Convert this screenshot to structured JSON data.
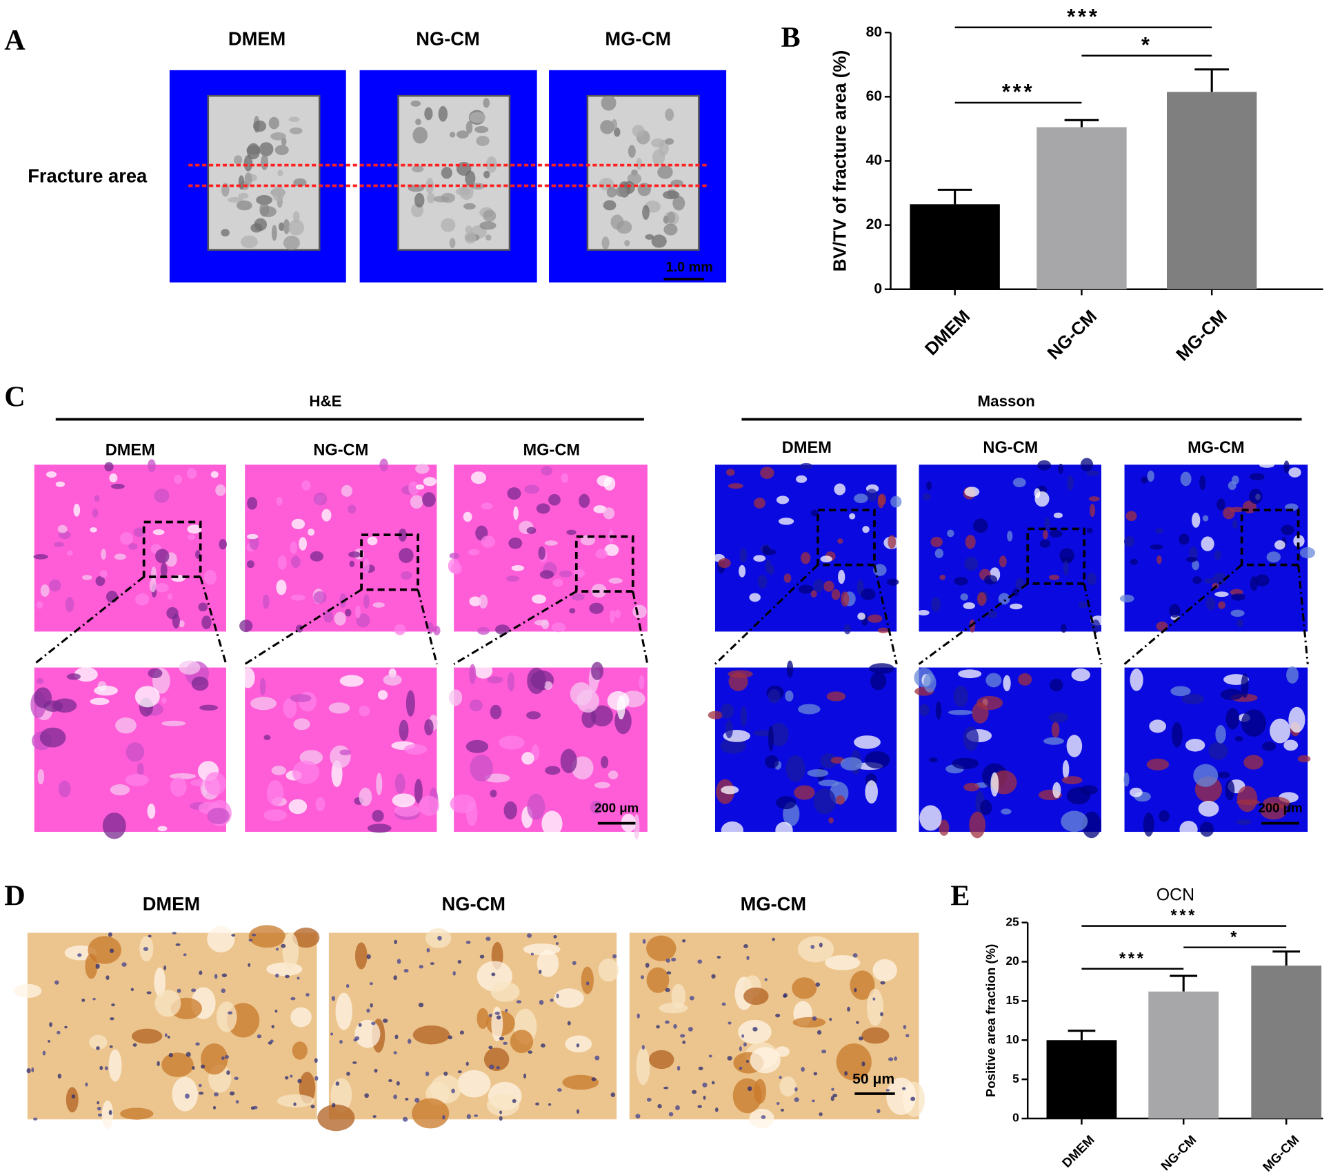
{
  "figure": {
    "panel_labels": [
      "A",
      "B",
      "C",
      "D",
      "E"
    ],
    "A": {
      "groups": [
        "DMEM",
        "NG-CM",
        "MG-CM"
      ],
      "region_label": "Fracture area",
      "scale_bar": "1.0 mm"
    },
    "C": {
      "stains": [
        "H&E",
        "Masson"
      ],
      "he_groups": [
        "DMEM",
        "NG-CM",
        "MG-CM"
      ],
      "masson_groups": [
        "DMEM",
        "NG-CM",
        "MG-CM"
      ],
      "scale_bars": [
        "200 μm",
        "200 μm"
      ]
    },
    "D": {
      "groups": [
        "DMEM",
        "NG-CM",
        "MG-CM"
      ],
      "scale_bar": "50 μm"
    }
  },
  "chart_data": [
    {
      "type": "bar",
      "ylabel": "BV/TV of fracture area (%)",
      "categories": [
        "DMEM",
        "NG-CM",
        "MG-CM"
      ],
      "values": [
        26.5,
        50.5,
        61.5
      ],
      "errors": [
        4.5,
        2.2,
        7
      ],
      "colors": [
        "#000000",
        "#a7a7aa",
        "#7f7f7f"
      ],
      "ylim": [
        0,
        80
      ],
      "yticks": [
        0,
        20,
        40,
        60,
        80
      ],
      "significance": [
        {
          "label": "***",
          "pair": [
            "DMEM",
            "MG-CM"
          ]
        },
        {
          "label": "*",
          "pair": [
            "NG-CM",
            "MG-CM"
          ]
        },
        {
          "label": "***",
          "pair": [
            "DMEM",
            "NG-CM"
          ]
        }
      ]
    },
    {
      "type": "bar",
      "title": "OCN",
      "ylabel": "Positive area fraction (%)",
      "categories": [
        "DMEM",
        "NG-CM",
        "MG-CM"
      ],
      "values": [
        10,
        16.2,
        19.5
      ],
      "errors": [
        1.2,
        2,
        1.8
      ],
      "colors": [
        "#000000",
        "#a7a7aa",
        "#7f7f7f"
      ],
      "ylim": [
        0,
        25
      ],
      "yticks": [
        0,
        5,
        10,
        15,
        20,
        25
      ],
      "significance": [
        {
          "label": "***",
          "pair": [
            "DMEM",
            "MG-CM"
          ]
        },
        {
          "label": "*",
          "pair": [
            "NG-CM",
            "MG-CM"
          ]
        },
        {
          "label": "***",
          "pair": [
            "DMEM",
            "NG-CM"
          ]
        }
      ]
    }
  ]
}
